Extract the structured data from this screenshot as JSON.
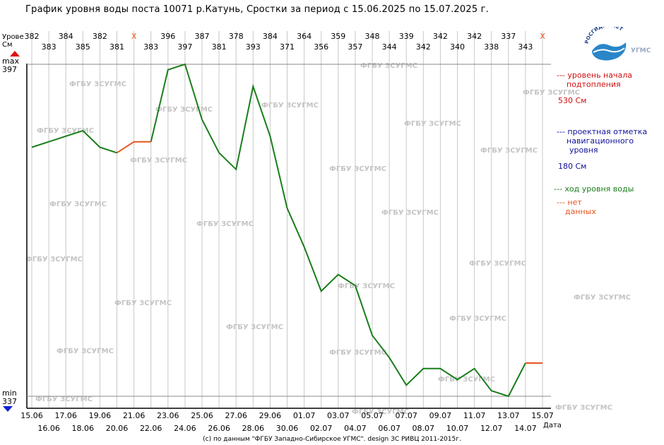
{
  "title": "График уровня воды поста 10071 р.Катунь, Сростки за период с 15.06.2025 по 15.07.2025 г.",
  "axis": {
    "y_label_top": "Урове",
    "y_label_unit": "См",
    "max_label": "max",
    "max_value": "397",
    "min_label": "min",
    "min_value": "337",
    "x_label": "Дата"
  },
  "watermark_text": "ФГБУ ЗСУГМС",
  "footer": "(с) по данным \"ФГБУ Западно-Сибирское УГМС\". design ЗС РИВЦ 2011-2015г.",
  "logo": {
    "arc_text": "РОСГИДРОМЕТ",
    "caption": "УГМС"
  },
  "legend": {
    "flood_label_1": "--- уровень начала",
    "flood_label_2": "подтопления",
    "flood_value": "530 См",
    "nav_label_1": "--- проектная отметка",
    "nav_label_2": "навигационного",
    "nav_label_3": "уровня",
    "nav_value": "180 См",
    "level_label": "--- ход уровня воды",
    "nodata_label_1": "--- нет",
    "nodata_label_2": "данных"
  },
  "colors": {
    "level_line": "#1a7d1a",
    "no_data": "#e8541e",
    "flood": "#d01010",
    "navigation": "#10109a",
    "grid": "#c8c8c8",
    "watermark": "#c4c4c4",
    "arrow_up": "#e01010",
    "arrow_down": "#1020d0"
  },
  "chart_data": {
    "type": "line",
    "title": "График уровня воды поста 10071 р.Катунь, Сростки за период с 15.06.2025 по 15.07.2025 г.",
    "xlabel": "Дата",
    "ylabel": "Урове См",
    "ylim": [
      337,
      397
    ],
    "grid": true,
    "x": [
      "15.06",
      "16.06",
      "17.06",
      "18.06",
      "19.06",
      "20.06",
      "21.06",
      "22.06",
      "23.06",
      "24.06",
      "25.06",
      "26.06",
      "27.06",
      "28.06",
      "29.06",
      "30.06",
      "01.07",
      "02.07",
      "03.07",
      "04.07",
      "05.07",
      "06.07",
      "07.07",
      "08.07",
      "09.07",
      "10.07",
      "11.07",
      "12.07",
      "13.07",
      "14.07",
      "15.07"
    ],
    "values": [
      382,
      383,
      384,
      385,
      382,
      381,
      null,
      383,
      396,
      397,
      387,
      381,
      378,
      393,
      384,
      371,
      364,
      356,
      359,
      357,
      348,
      344,
      339,
      342,
      342,
      340,
      342,
      338,
      337,
      343,
      null
    ],
    "value_labels": [
      "382",
      "383",
      "384",
      "385",
      "382",
      "381",
      "X",
      "383",
      "396",
      "397",
      "387",
      "381",
      "378",
      "393",
      "384",
      "371",
      "364",
      "356",
      "359",
      "357",
      "348",
      "344",
      "339",
      "342",
      "342",
      "340",
      "342",
      "338",
      "337",
      "343",
      "X"
    ],
    "series": [
      {
        "name": "ход уровня воды",
        "values": [
          382,
          383,
          384,
          385,
          382,
          381,
          null,
          383,
          396,
          397,
          387,
          381,
          378,
          393,
          384,
          371,
          364,
          356,
          359,
          357,
          348,
          344,
          339,
          342,
          342,
          340,
          342,
          338,
          337,
          343,
          null
        ]
      },
      {
        "name": "нет данных",
        "values": [
          null,
          null,
          null,
          null,
          null,
          381,
          383,
          383,
          null,
          null,
          null,
          null,
          null,
          null,
          null,
          null,
          null,
          null,
          null,
          null,
          null,
          null,
          null,
          null,
          null,
          null,
          null,
          null,
          null,
          343,
          343
        ]
      }
    ]
  }
}
